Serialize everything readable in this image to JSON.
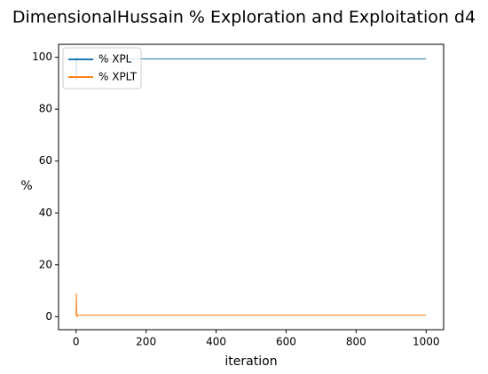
{
  "chart_data": {
    "type": "line",
    "title": "DimensionalHussain % Exploration and Exploitation d4",
    "x_label": "iteration",
    "y_label": "%",
    "x": [
      0,
      1,
      2,
      3,
      5,
      10,
      1000
    ],
    "series": [
      {
        "name": "% XPL",
        "color": "#1f77b4",
        "values": [
          99.4,
          91,
          100,
          100,
          99.4,
          99.4,
          99.4
        ]
      },
      {
        "name": "% XPLT",
        "color": "#ff7f0e",
        "values": [
          0.6,
          9,
          0,
          0,
          0.6,
          0.6,
          0.6
        ]
      }
    ],
    "xlim": [
      -50,
      1050
    ],
    "xticks": [
      0,
      200,
      400,
      600,
      800,
      1000
    ],
    "ylim": [
      -5,
      105
    ],
    "yticks": [
      0,
      20,
      40,
      60,
      80,
      100
    ],
    "legend": "upper left"
  }
}
